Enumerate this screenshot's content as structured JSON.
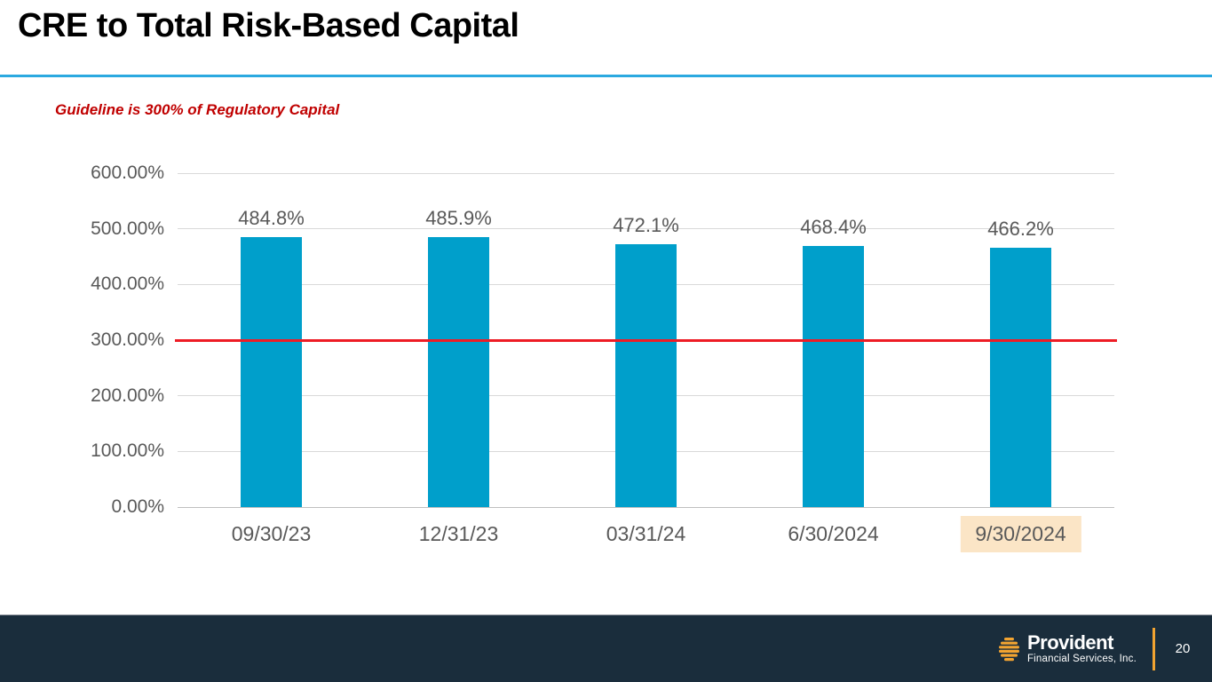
{
  "slide": {
    "title": "CRE to Total Risk-Based Capital",
    "guideline_note": "Guideline is 300% of Regulatory Capital",
    "page_number": "20"
  },
  "footer": {
    "logo_name": "Provident",
    "logo_subtitle": "Financial Services, Inc.",
    "logo_icon": "beehive-icon"
  },
  "colors": {
    "bar": "#009FCB",
    "guideline_line": "#EE1C25",
    "guideline_text": "#C00000",
    "title_divider": "#2BA9E0",
    "footer_bg": "#1A2D3C",
    "highlight_bg": "#FBE5C6",
    "axis_text": "#595959",
    "gridline": "#D9D9D9",
    "axis_line": "#BFBFBF",
    "logo_gold": "#F2A431"
  },
  "chart_data": {
    "type": "bar",
    "title": "CRE to Total Risk-Based Capital",
    "categories": [
      "09/30/23",
      "12/31/23",
      "03/31/24",
      "6/30/2024",
      "9/30/2024"
    ],
    "values": [
      484.8,
      485.9,
      472.1,
      468.4,
      466.2
    ],
    "value_labels": [
      "484.8%",
      "485.9%",
      "472.1%",
      "468.4%",
      "466.2%"
    ],
    "y_ticks": [
      "600.00%",
      "500.00%",
      "400.00%",
      "300.00%",
      "200.00%",
      "100.00%",
      "0.00%"
    ],
    "ylim": [
      0,
      600
    ],
    "y_step": 100,
    "guideline_value": 300,
    "highlighted_category_index": 4,
    "xlabel": "",
    "ylabel": "",
    "grid": true,
    "legend": false
  }
}
